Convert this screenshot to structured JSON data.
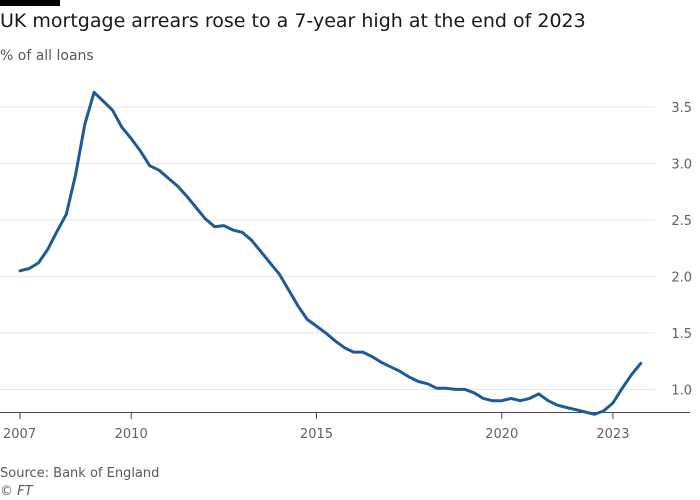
{
  "title": "UK mortgage arrears rose to a 7-year high at the end of 2023",
  "subtitle": "% of all loans",
  "source": "Source: Bank of England",
  "credit": "© FT",
  "colors": {
    "line": "#1f5a96",
    "grid": "#e8e6e4",
    "axis": "#4d4845",
    "tick_text": "#66605c",
    "brand_bar": "#000000"
  },
  "chart_data": {
    "type": "line",
    "title": "UK mortgage arrears rose to a 7-year high at the end of 2023",
    "ylabel": "% of all loans",
    "xlabel": "",
    "xlim": [
      2007.0,
      2024.0
    ],
    "ylim": [
      0.8,
      3.65
    ],
    "yticks": [
      1.0,
      1.5,
      2.0,
      2.5,
      3.0,
      3.5
    ],
    "ytick_labels": [
      "1.0",
      "1.5",
      "2.0",
      "2.5",
      "3.0",
      "3.5"
    ],
    "y_axis_side": "right",
    "xticks": [
      2007,
      2010,
      2015,
      2020,
      2023
    ],
    "xtick_labels": [
      "2007",
      "2010",
      "2015",
      "2020",
      "2023"
    ],
    "grid": "horizontal",
    "series": [
      {
        "x": [
          2007.0,
          2007.25,
          2007.5,
          2007.75,
          2008.0,
          2008.25,
          2008.5,
          2008.75,
          2009.0,
          2009.25,
          2009.5,
          2009.75,
          2010.0,
          2010.25,
          2010.5,
          2010.75,
          2011.0,
          2011.25,
          2011.5,
          2011.75,
          2012.0,
          2012.25,
          2012.5,
          2012.75,
          2013.0,
          2013.25,
          2013.5,
          2013.75,
          2014.0,
          2014.25,
          2014.5,
          2014.75,
          2015.0,
          2015.25,
          2015.5,
          2015.75,
          2016.0,
          2016.25,
          2016.5,
          2016.75,
          2017.0,
          2017.25,
          2017.5,
          2017.75,
          2018.0,
          2018.25,
          2018.5,
          2018.75,
          2019.0,
          2019.25,
          2019.5,
          2019.75,
          2020.0,
          2020.25,
          2020.5,
          2020.75,
          2021.0,
          2021.25,
          2021.5,
          2021.75,
          2022.0,
          2022.25,
          2022.5,
          2022.75,
          2023.0,
          2023.25,
          2023.5,
          2023.75
        ],
        "values": [
          2.05,
          2.07,
          2.12,
          2.24,
          2.4,
          2.55,
          2.9,
          3.35,
          3.63,
          3.55,
          3.47,
          3.32,
          3.22,
          3.11,
          2.98,
          2.94,
          2.87,
          2.8,
          2.71,
          2.61,
          2.51,
          2.44,
          2.45,
          2.41,
          2.39,
          2.32,
          2.22,
          2.12,
          2.02,
          1.88,
          1.74,
          1.62,
          1.56,
          1.5,
          1.43,
          1.37,
          1.33,
          1.33,
          1.29,
          1.24,
          1.2,
          1.16,
          1.11,
          1.07,
          1.05,
          1.01,
          1.01,
          1.0,
          1.0,
          0.97,
          0.92,
          0.9,
          0.9,
          0.92,
          0.9,
          0.92,
          0.96,
          0.9,
          0.86,
          0.84,
          0.82,
          0.8,
          0.78,
          0.81,
          0.88,
          1.01,
          1.13,
          1.23
        ]
      }
    ]
  }
}
